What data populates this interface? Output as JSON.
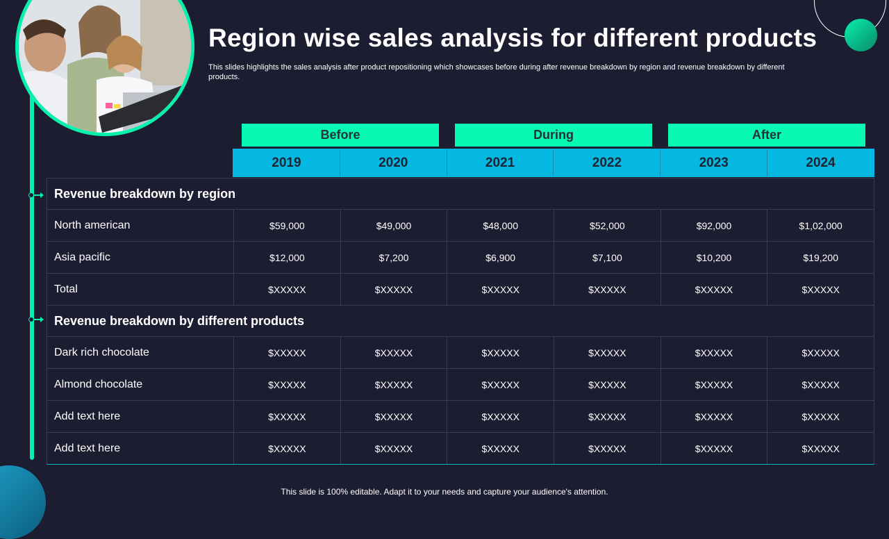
{
  "title": "Region wise sales analysis for different products",
  "subtitle": "This slides highlights the sales analysis after product repositioning which showcases before during after revenue breakdown by region and revenue breakdown by different products.",
  "periods": [
    "Before",
    "During",
    "After"
  ],
  "years": [
    "2019",
    "2020",
    "2021",
    "2022",
    "2023",
    "2024"
  ],
  "sections": [
    {
      "heading": "Revenue breakdown by region",
      "rows": [
        {
          "label": "North american",
          "values": [
            "$59,000",
            "$49,000",
            "$48,000",
            "$52,000",
            "$92,000",
            "$1,02,000"
          ]
        },
        {
          "label": "Asia pacific",
          "values": [
            "$12,000",
            "$7,200",
            "$6,900",
            "$7,100",
            "$10,200",
            "$19,200"
          ]
        },
        {
          "label": "Total",
          "values": [
            "$XXXXX",
            "$XXXXX",
            "$XXXXX",
            "$XXXXX",
            "$XXXXX",
            "$XXXXX"
          ]
        }
      ]
    },
    {
      "heading": "Revenue breakdown by different products",
      "rows": [
        {
          "label": "Dark rich chocolate",
          "values": [
            "$XXXXX",
            "$XXXXX",
            "$XXXXX",
            "$XXXXX",
            "$XXXXX",
            "$XXXXX"
          ]
        },
        {
          "label": "Almond chocolate",
          "values": [
            "$XXXXX",
            "$XXXXX",
            "$XXXXX",
            "$XXXXX",
            "$XXXXX",
            "$XXXXX"
          ]
        },
        {
          "label": "Add text here",
          "values": [
            "$XXXXX",
            "$XXXXX",
            "$XXXXX",
            "$XXXXX",
            "$XXXXX",
            "$XXXXX"
          ]
        },
        {
          "label": "Add text here",
          "values": [
            "$XXXXX",
            "$XXXXX",
            "$XXXXX",
            "$XXXXX",
            "$XXXXX",
            "$XXXXX"
          ]
        }
      ]
    }
  ],
  "footer": "This slide is 100% editable. Adapt it to your needs and capture your audience's attention.",
  "colors": {
    "background": "#1d1d31",
    "accent": "#07f0ae",
    "period_header": "#07f9b3",
    "year_header": "#05b8e1"
  }
}
